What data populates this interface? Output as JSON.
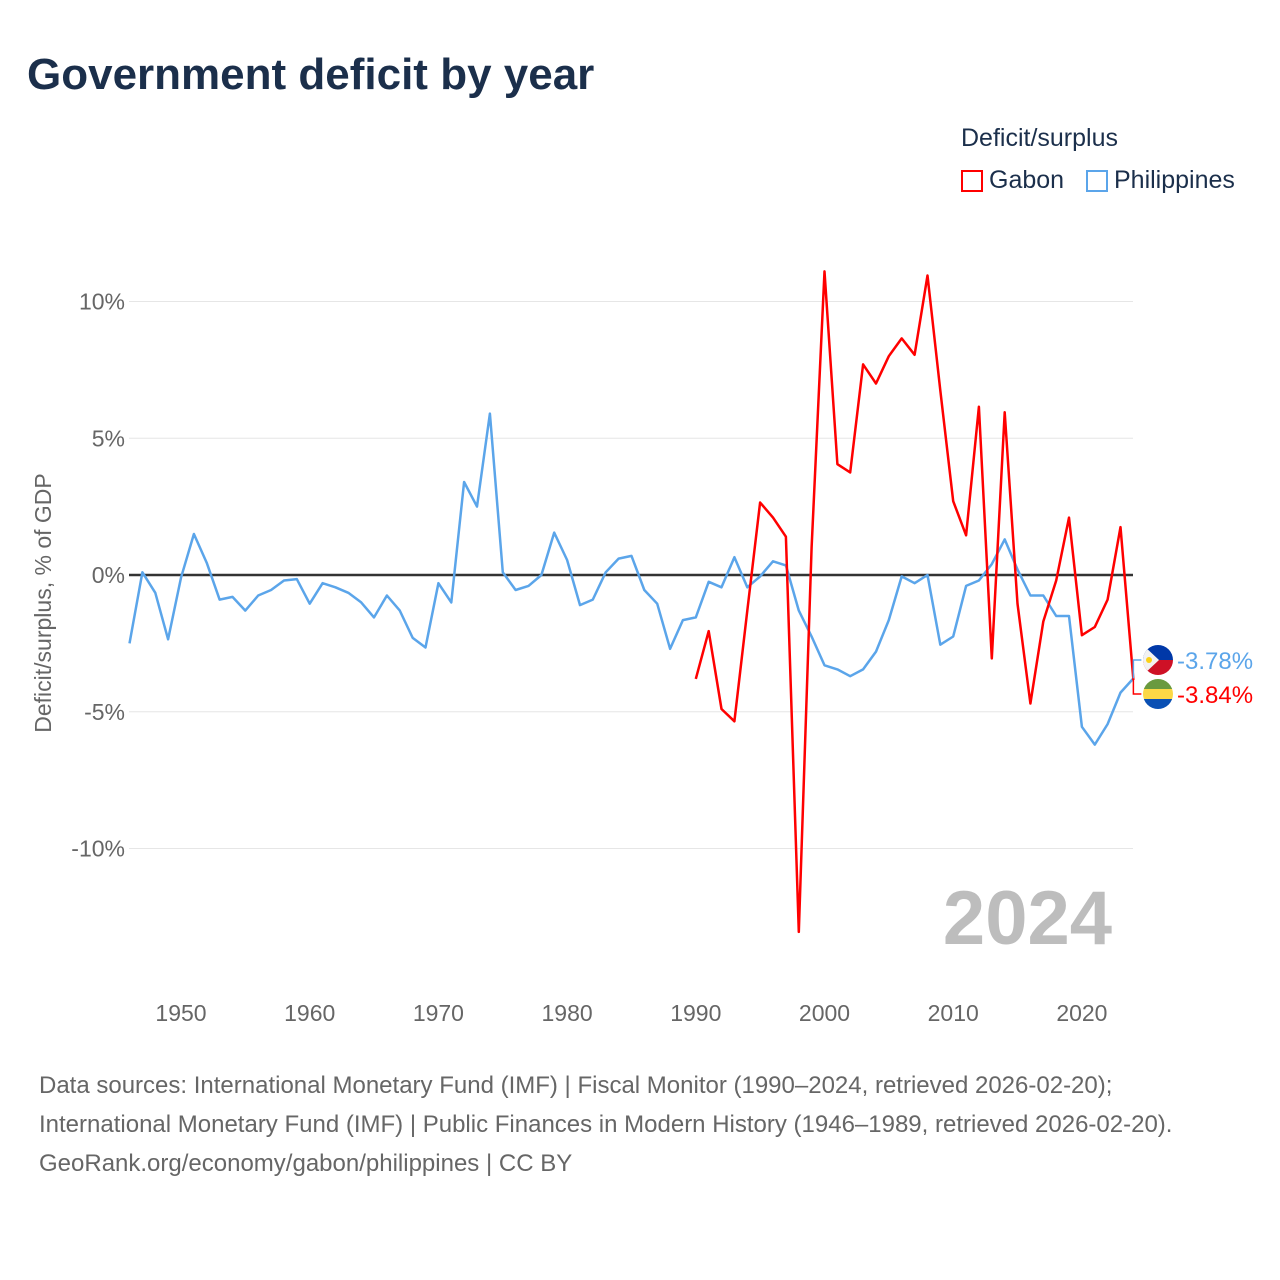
{
  "title": "Government deficit by year",
  "legend": {
    "title": "Deficit/surplus",
    "items": [
      {
        "name": "Gabon",
        "color": "#ff0000"
      },
      {
        "name": "Philippines",
        "color": "#5ba5ea"
      }
    ]
  },
  "source": {
    "line1": "Data sources: International Monetary Fund (IMF) | Fiscal Monitor (1990–2024, retrieved 2026-02-20); International Monetary Fund (IMF) | Public Finances in Modern History (1946–1989, retrieved 2026-02-20).",
    "line2": "GeoRank.org/economy/gabon/philippines | CC BY"
  },
  "chart_data": {
    "type": "line",
    "title": "Government deficit by year",
    "ylabel": "Deficit/surplus, % of GDP",
    "xlim": [
      1946,
      2024
    ],
    "ylim": [
      -14,
      12
    ],
    "x_ticks": [
      1950,
      1960,
      1970,
      1980,
      1990,
      2000,
      2010,
      2020
    ],
    "y_ticks": [
      {
        "v": 10,
        "label": "10%"
      },
      {
        "v": 5,
        "label": "5%"
      },
      {
        "v": 0,
        "label": "0%"
      },
      {
        "v": -5,
        "label": "-5%"
      },
      {
        "v": -10,
        "label": "-10%"
      }
    ],
    "year_watermark": "2024",
    "series": [
      {
        "name": "Philippines",
        "color": "#5ba5ea",
        "start": 1946,
        "end_label": "-3.78%",
        "values": [
          -2.5,
          0.1,
          -0.65,
          -2.35,
          -0.1,
          1.5,
          0.45,
          -0.9,
          -0.8,
          -1.3,
          -0.75,
          -0.55,
          -0.2,
          -0.15,
          -1.05,
          -0.3,
          -0.45,
          -0.65,
          -1.0,
          -1.55,
          -0.75,
          -1.3,
          -2.3,
          -2.65,
          -0.3,
          -1.0,
          3.4,
          2.5,
          5.9,
          0.1,
          -0.55,
          -0.4,
          0,
          1.55,
          0.55,
          -1.1,
          -0.9,
          0.1,
          0.6,
          0.7,
          -0.55,
          -1.05,
          -2.7,
          -1.65,
          -1.55,
          -0.25,
          -0.45,
          0.65,
          -0.45,
          -0.05,
          0.5,
          0.35,
          -1.3,
          -2.25,
          -3.3,
          -3.45,
          -3.7,
          -3.45,
          -2.8,
          -1.65,
          -0.05,
          -0.3,
          0,
          -2.55,
          -2.25,
          -0.4,
          -0.2,
          0.4,
          1.3,
          0.2,
          -0.75,
          -0.75,
          -1.5,
          -1.5,
          -5.55,
          -6.2,
          -5.45,
          -4.3,
          -3.78
        ]
      },
      {
        "name": "Gabon",
        "color": "#ff0000",
        "start": 1990,
        "end_label": "-3.84%",
        "values": [
          -3.8,
          -2.05,
          -4.9,
          -5.35,
          -1.3,
          2.65,
          2.1,
          1.4,
          -13.05,
          1.0,
          11.1,
          4.05,
          3.75,
          7.7,
          7.0,
          8.0,
          8.65,
          8.05,
          10.95,
          6.75,
          2.7,
          1.45,
          6.15,
          -3.05,
          5.95,
          -1.05,
          -4.7,
          -1.7,
          -0.2,
          2.1,
          -2.2,
          -1.9,
          -0.9,
          1.75,
          -3.84
        ]
      }
    ]
  }
}
